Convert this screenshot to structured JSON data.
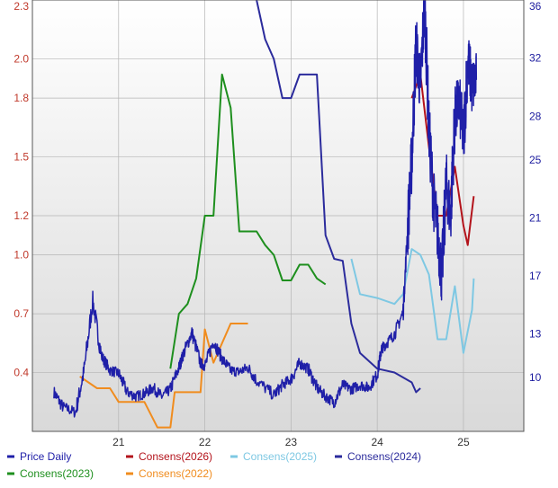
{
  "chart_data": {
    "type": "line",
    "title": "",
    "xlabel": "",
    "ylabel": "",
    "x_ticks": [
      "21",
      "22",
      "23",
      "24",
      "25"
    ],
    "left_axis": {
      "ticks": [
        "0.4",
        "0.7",
        "1.0",
        "1.2",
        "1.5",
        "1.8",
        "2.0",
        "2.3"
      ],
      "tick_values": [
        0.4,
        0.7,
        1.0,
        1.2,
        1.5,
        1.8,
        2.0,
        2.3
      ],
      "ylim": [
        0.1,
        2.3
      ],
      "color": "#c0392b"
    },
    "right_axis": {
      "ticks": [
        "10",
        "13",
        "17",
        "21",
        "25",
        "28",
        "32",
        "36"
      ],
      "tick_values": [
        10,
        13,
        17,
        21,
        25,
        28,
        32,
        36
      ],
      "ylim": [
        6.3,
        36
      ],
      "color": "#1a1a9e"
    },
    "grid": true,
    "legend_position": "bottom",
    "legend": [
      {
        "label": "Price Daily",
        "color": "#1f1fa8"
      },
      {
        "label": "Consens(2026)",
        "color": "#b3131b"
      },
      {
        "label": "Consens(2025)",
        "color": "#7ec8e3"
      },
      {
        "label": "Consens(2024)",
        "color": "#2b2b9c"
      },
      {
        "label": "Consens(2023)",
        "color": "#1e8f1e"
      },
      {
        "label": "Consens(2022)",
        "color": "#f08c1e"
      }
    ],
    "series": [
      {
        "name": "Price Daily",
        "axis": "right",
        "color": "#1f1fa8",
        "jitter": true,
        "x": [
          2020.25,
          2020.35,
          2020.5,
          2020.6,
          2020.7,
          2020.8,
          2020.9,
          2021.0,
          2021.1,
          2021.2,
          2021.3,
          2021.4,
          2021.5,
          2021.6,
          2021.7,
          2021.75,
          2021.85,
          2021.95,
          2022.0,
          2022.1,
          2022.2,
          2022.3,
          2022.4,
          2022.5,
          2022.6,
          2022.8,
          2022.9,
          2023.0,
          2023.1,
          2023.2,
          2023.3,
          2023.4,
          2023.5,
          2023.6,
          2023.7,
          2023.8,
          2023.9,
          2024.0,
          2024.05,
          2024.1,
          2024.2,
          2024.3,
          2024.35,
          2024.4,
          2024.45,
          2024.5,
          2024.55,
          2024.6,
          2024.65,
          2024.7,
          2024.75,
          2024.8,
          2024.85,
          2024.9,
          2024.95,
          2025.0,
          2025.05,
          2025.1,
          2025.15
        ],
        "y": [
          9.0,
          8.0,
          7.6,
          10.5,
          15.3,
          11.5,
          10.5,
          10.3,
          9.0,
          8.7,
          8.9,
          9.3,
          8.7,
          9.2,
          10.7,
          11.6,
          13.1,
          11.0,
          10.8,
          12.5,
          11.3,
          10.5,
          10.4,
          10.7,
          9.8,
          8.8,
          9.5,
          9.9,
          11.0,
          10.6,
          9.3,
          8.7,
          8.3,
          9.5,
          9.2,
          9.5,
          9.3,
          10.2,
          12.0,
          12.3,
          13.0,
          14.5,
          20.0,
          25.0,
          33.0,
          30.0,
          36.0,
          27.0,
          22.5,
          20.0,
          17.0,
          23.5,
          21.0,
          28.0,
          29.0,
          26.5,
          32.0,
          30.0,
          30.5
        ]
      },
      {
        "name": "Consens(2026)",
        "axis": "left",
        "color": "#b3131b",
        "jitter": false,
        "x": [
          2024.4,
          2024.5,
          2024.6,
          2024.7,
          2024.8,
          2024.9,
          2025.0,
          2025.05,
          2025.12
        ],
        "y": [
          1.8,
          1.92,
          1.55,
          1.2,
          1.2,
          1.45,
          1.15,
          1.05,
          1.3
        ]
      },
      {
        "name": "Consens(2025)",
        "axis": "left",
        "color": "#7ec8e3",
        "jitter": false,
        "x": [
          2023.7,
          2023.8,
          2024.0,
          2024.2,
          2024.3,
          2024.4,
          2024.5,
          2024.6,
          2024.7,
          2024.8,
          2024.9,
          2025.0,
          2025.1,
          2025.12
        ],
        "y": [
          0.98,
          0.8,
          0.78,
          0.75,
          0.8,
          1.03,
          1.0,
          0.9,
          0.57,
          0.57,
          0.84,
          0.5,
          0.72,
          0.88
        ]
      },
      {
        "name": "Consens(2024)",
        "axis": "left",
        "color": "#2b2b9c",
        "jitter": false,
        "x": [
          2022.6,
          2022.7,
          2022.8,
          2022.9,
          2023.0,
          2023.1,
          2023.2,
          2023.3,
          2023.4,
          2023.5,
          2023.6,
          2023.7,
          2023.8,
          2024.0,
          2024.2,
          2024.4,
          2024.45,
          2024.5
        ],
        "y": [
          2.3,
          2.1,
          2.0,
          1.8,
          1.8,
          1.92,
          1.92,
          1.92,
          1.1,
          0.98,
          0.97,
          0.65,
          0.5,
          0.42,
          0.4,
          0.35,
          0.3,
          0.32
        ]
      },
      {
        "name": "Consens(2023)",
        "axis": "left",
        "color": "#1e8f1e",
        "jitter": false,
        "x": [
          2021.6,
          2021.7,
          2021.8,
          2021.9,
          2022.0,
          2022.1,
          2022.2,
          2022.3,
          2022.4,
          2022.5,
          2022.6,
          2022.7,
          2022.8,
          2022.9,
          2023.0,
          2023.1,
          2023.2,
          2023.3,
          2023.4
        ],
        "y": [
          0.42,
          0.7,
          0.75,
          0.88,
          1.2,
          1.2,
          1.92,
          1.75,
          1.12,
          1.12,
          1.12,
          1.05,
          1.0,
          0.87,
          0.87,
          0.95,
          0.95,
          0.88,
          0.85
        ]
      },
      {
        "name": "Consens(2022)",
        "axis": "left",
        "color": "#f08c1e",
        "jitter": false,
        "x": [
          2020.55,
          2020.65,
          2020.75,
          2020.9,
          2021.0,
          2021.2,
          2021.3,
          2021.45,
          2021.5,
          2021.6,
          2021.65,
          2021.75,
          2021.95,
          2022.0,
          2022.1,
          2022.3,
          2022.4,
          2022.5
        ],
        "y": [
          0.38,
          0.35,
          0.32,
          0.32,
          0.25,
          0.25,
          0.25,
          0.12,
          0.12,
          0.12,
          0.3,
          0.3,
          0.3,
          0.62,
          0.45,
          0.65,
          0.65,
          0.65
        ]
      }
    ]
  }
}
